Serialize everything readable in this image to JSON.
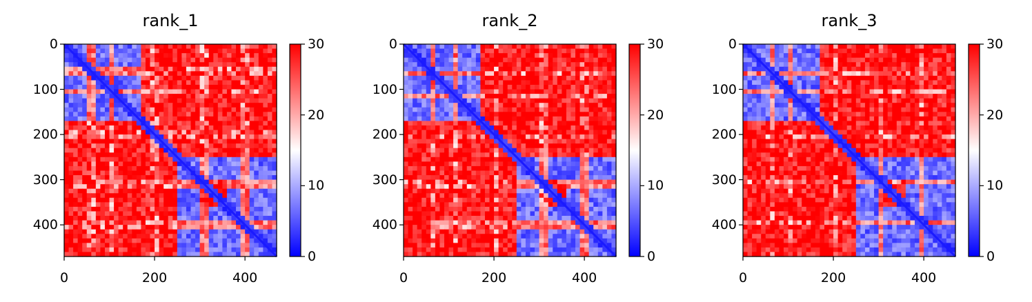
{
  "chart_data": [
    {
      "type": "heatmap",
      "title": "rank_1",
      "matrix_size": 470,
      "x_ticks": [
        "0",
        "200",
        "400"
      ],
      "y_ticks": [
        "0",
        "100",
        "200",
        "300",
        "400"
      ],
      "colorbar": {
        "cmap": "bwr",
        "vmin": 0,
        "vmax": 30,
        "ticks": [
          "0",
          "10",
          "20",
          "30"
        ]
      },
      "domains": [
        [
          0,
          175
        ],
        [
          175,
          250
        ],
        [
          250,
          360
        ],
        [
          360,
          470
        ]
      ],
      "low_blocks": [
        [
          0,
          175,
          0,
          175
        ],
        [
          250,
          300,
          250,
          470
        ],
        [
          360,
          470,
          250,
          470
        ]
      ],
      "bands": [
        [
          55,
          70
        ],
        [
          100,
          110
        ],
        [
          195,
          210
        ],
        [
          300,
          320
        ],
        [
          395,
          410
        ]
      ]
    },
    {
      "type": "heatmap",
      "title": "rank_2",
      "matrix_size": 470,
      "x_ticks": [
        "0",
        "200",
        "400"
      ],
      "y_ticks": [
        "0",
        "100",
        "200",
        "300",
        "400"
      ],
      "colorbar": {
        "cmap": "bwr",
        "vmin": 0,
        "vmax": 30,
        "ticks": [
          "0",
          "10",
          "20",
          "30"
        ]
      },
      "domains": [
        [
          0,
          175
        ],
        [
          175,
          250
        ],
        [
          250,
          360
        ],
        [
          360,
          470
        ]
      ],
      "low_blocks": [
        [
          0,
          175,
          0,
          175
        ],
        [
          250,
          300,
          250,
          470
        ],
        [
          360,
          470,
          250,
          470
        ]
      ],
      "bands": [
        [
          65,
          75
        ],
        [
          115,
          125
        ],
        [
          200,
          215
        ],
        [
          305,
          320
        ],
        [
          395,
          410
        ]
      ]
    },
    {
      "type": "heatmap",
      "title": "rank_3",
      "matrix_size": 470,
      "x_ticks": [
        "0",
        "200",
        "400"
      ],
      "y_ticks": [
        "0",
        "100",
        "200",
        "300",
        "400"
      ],
      "colorbar": {
        "cmap": "bwr",
        "vmin": 0,
        "vmax": 30,
        "ticks": [
          "0",
          "10",
          "20",
          "30"
        ]
      },
      "domains": [
        [
          0,
          175
        ],
        [
          175,
          250
        ],
        [
          250,
          360
        ],
        [
          360,
          470
        ]
      ],
      "low_blocks": [
        [
          0,
          175,
          0,
          175
        ],
        [
          250,
          300,
          250,
          470
        ],
        [
          360,
          470,
          250,
          470
        ]
      ],
      "bands": [
        [
          60,
          70
        ],
        [
          105,
          115
        ],
        [
          200,
          210
        ],
        [
          300,
          315
        ],
        [
          395,
          405
        ]
      ]
    }
  ]
}
